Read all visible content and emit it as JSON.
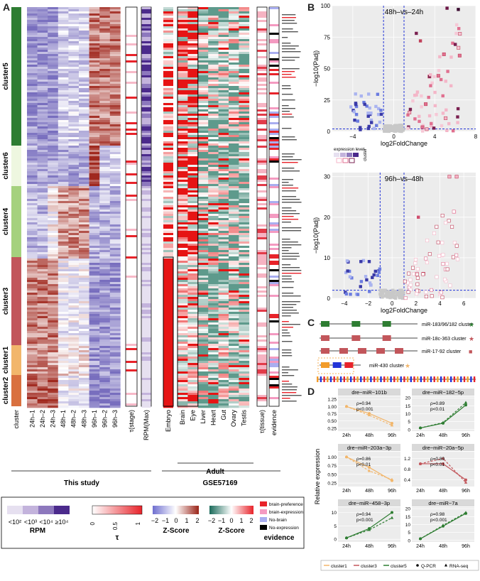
{
  "panels": {
    "A": "A",
    "B": "B",
    "C": "C",
    "D": "D"
  },
  "panel_a": {
    "clusters": [
      {
        "name": "cluster5",
        "color": "#2e7d32"
      },
      {
        "name": "cluster6",
        "color": "#eef7e0"
      },
      {
        "name": "cluster4",
        "color": "#a5d17e"
      },
      {
        "name": "cluster3",
        "color": "#c2565b"
      },
      {
        "name": "cluster1",
        "color": "#f2b66b"
      },
      {
        "name": "cluster2",
        "color": "#d9703f"
      }
    ],
    "columns_this_study": [
      "cluster",
      "24h–1",
      "24h–2",
      "24h–3",
      "48h–1",
      "48h–2",
      "48h–3",
      "96h–1",
      "96h–2",
      "96h–3",
      "τ(stage)",
      "RPM(Max)"
    ],
    "columns_gse": [
      "Embryo",
      "Brain",
      "Eye",
      "Liver",
      "Heart",
      "Gut",
      "Ovary",
      "Testis",
      "τ(tissue)",
      "evidence"
    ],
    "group_this_study": "This study",
    "group_adult": "Adult",
    "group_gse": "GSE57169"
  },
  "legends": {
    "rpm": {
      "ticks": [
        "<10²",
        "<10³",
        "<10⁴",
        "≥10⁴"
      ],
      "title": "RPM",
      "colors": [
        "#e6e0f0",
        "#c3b3dc",
        "#8d78bd",
        "#4b2a8c"
      ]
    },
    "tau": {
      "ticks": [
        "0",
        "0.5",
        "1"
      ],
      "title": "τ"
    },
    "z1": {
      "ticks": [
        "−2",
        "−1",
        "0",
        "1",
        "2"
      ],
      "title": "Z-Score"
    },
    "z2": {
      "ticks": [
        "−2",
        "−1",
        "0",
        "1",
        "2"
      ],
      "title": "Z-Score"
    },
    "evidence": {
      "items": [
        {
          "label": "brain-preference",
          "color": "#e8232a"
        },
        {
          "label": "brain-expression",
          "color": "#f49ac1"
        },
        {
          "label": "No-brain",
          "color": "#a9aef0"
        },
        {
          "label": "No-expression",
          "color": "#000000"
        }
      ],
      "title": "evidence"
    }
  },
  "panel_b": {
    "top": {
      "title": "48h–vs–24h",
      "ylabel": "−log10(Padj)",
      "xlabel": "log2FoldChange",
      "xticks": [
        "−4",
        "0",
        "4",
        "8"
      ],
      "yticks": [
        "0",
        "25",
        "50",
        "75",
        "100"
      ]
    },
    "bottom": {
      "title": "96h–vs–48h",
      "ylabel": "−log10(Padj)",
      "xlabel": "log2FoldChange",
      "xticks": [
        "−4",
        "−2",
        "0",
        "2",
        "4",
        "6"
      ],
      "yticks": [
        "0",
        "10",
        "20",
        "30"
      ]
    },
    "legend_expr": "expression level",
    "legend_cluster": "cluster",
    "legend_ticks": "10² 10³ 10⁴"
  },
  "panel_c": {
    "clusters": [
      {
        "label": "miR-183/96/182 cluster",
        "mark": "★",
        "mark_color": "#2e7d32"
      },
      {
        "label": "miR-18c-363 cluster",
        "mark": "★",
        "mark_color": "#c2565b"
      },
      {
        "label": "miR-17-92 cluster",
        "mark": "■",
        "mark_color": "#c2565b"
      },
      {
        "label": "miR-430 cluster",
        "mark": "★",
        "mark_color": "#f2b66b"
      }
    ]
  },
  "panel_d": {
    "ylabel": "Relative expression",
    "xticks": [
      "24h",
      "48h",
      "96h"
    ],
    "charts": [
      {
        "title": "dre−miR−101b",
        "rho": "ρ=0.94",
        "p": "p<0.001",
        "color": "#f2b66b",
        "yticks": [
          "0.25",
          "0.50",
          "0.75",
          "1.00",
          "1.25"
        ]
      },
      {
        "title": "dre−miR−182−5p",
        "rho": "ρ=0.89",
        "p": "p<0.01",
        "color": "#2e7d32",
        "yticks": [
          "0",
          "5",
          "10",
          "15",
          "20"
        ]
      },
      {
        "title": "dre−miR−203a−3p",
        "rho": "ρ=0.86",
        "p": "p<0.01",
        "color": "#f2b66b",
        "yticks": [
          "0.25",
          "0.50",
          "0.75",
          "1.00"
        ]
      },
      {
        "title": "dre−miR−20a−5p",
        "rho": "ρ=0.89",
        "p": "p<0.01",
        "color": "#c2565b",
        "yticks": [
          "0.4",
          "0.8",
          "1.2"
        ]
      },
      {
        "title": "dre−miR−458−3p",
        "rho": "ρ=0.94",
        "p": "p<0.001",
        "color": "#2e7d32",
        "yticks": [
          "0",
          "5",
          "10"
        ]
      },
      {
        "title": "dre−miR−7a",
        "rho": "ρ=0.98",
        "p": "p<0.001",
        "color": "#2e7d32",
        "yticks": [
          "0",
          "5",
          "10",
          "15",
          "20"
        ]
      }
    ],
    "legend": [
      "cluster1",
      "cluster3",
      "cluster5",
      "Q-PCR",
      "RNA-seq"
    ]
  }
}
